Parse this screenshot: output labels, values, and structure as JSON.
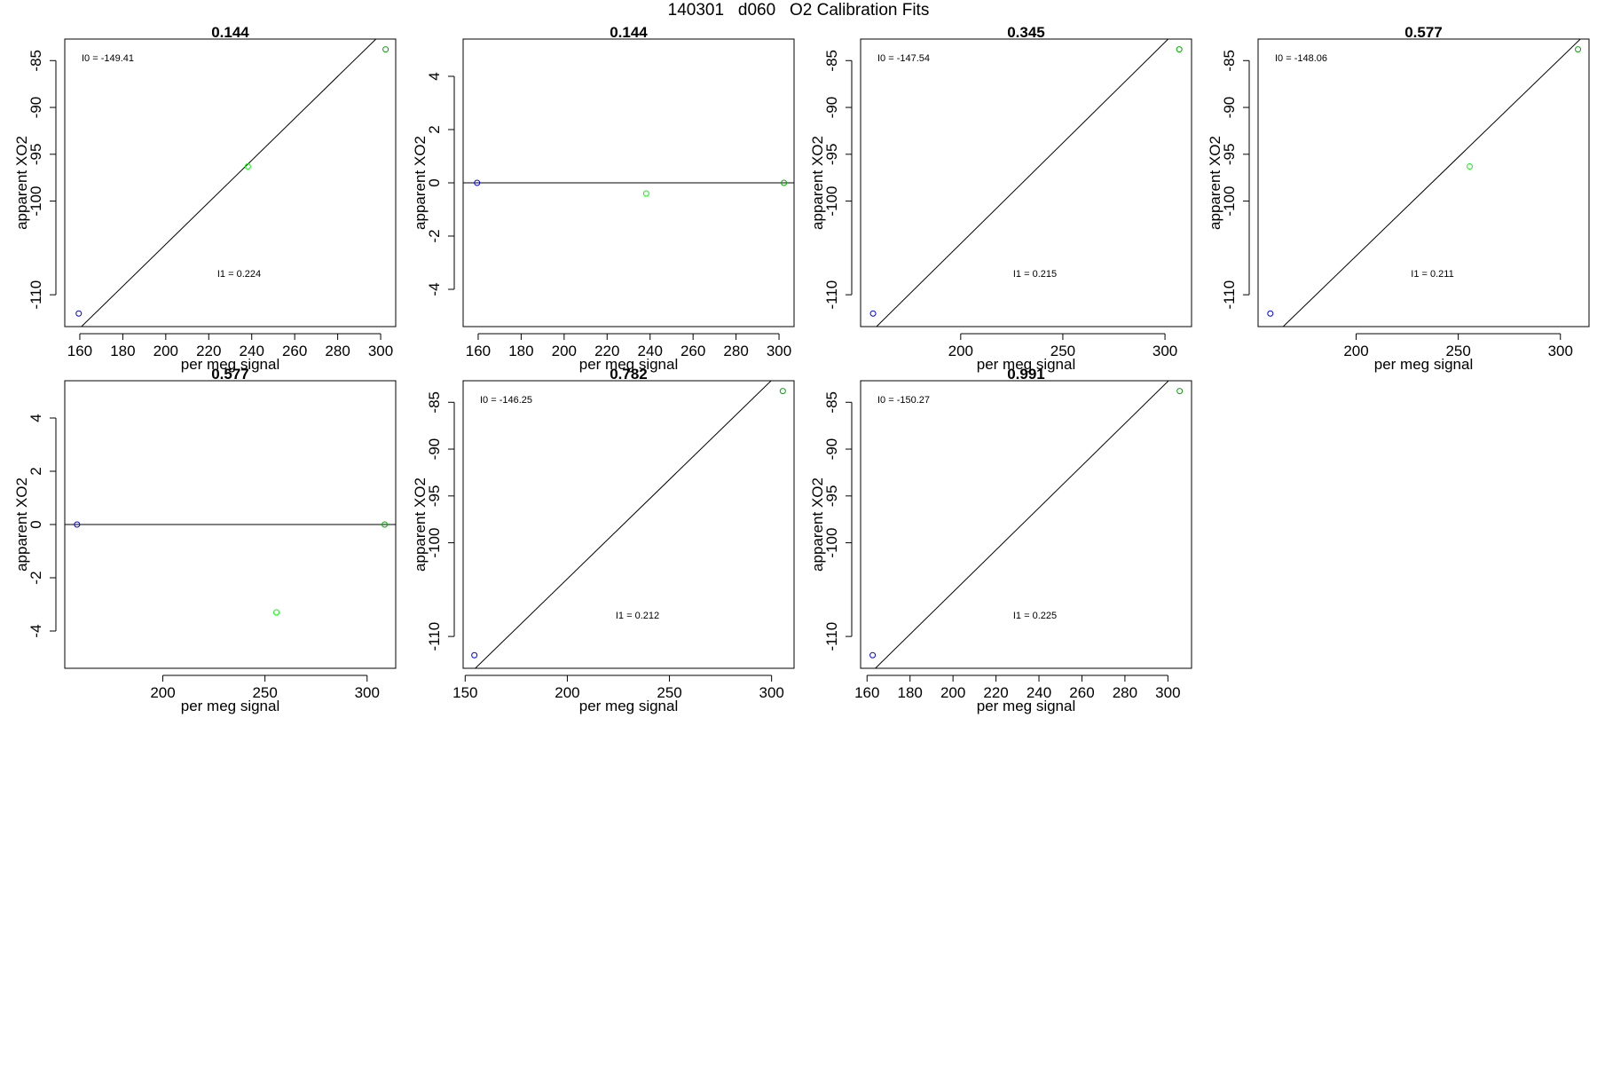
{
  "page_title": "140301   d060   O2 Calibration Fits",
  "colors": {
    "low_std": "#0000ff",
    "mid_std": "#00ff00",
    "high_std": "#00aa00",
    "fit_line": "#000000"
  },
  "chart_data": [
    {
      "type": "scatter",
      "title": "0.144",
      "xlabel": "per meg signal",
      "ylabel": "apparent XO2",
      "xlim": [
        153,
        307
      ],
      "ylim": [
        -113.4,
        -82.7
      ],
      "xticks": [
        160,
        180,
        200,
        220,
        240,
        260,
        280,
        300
      ],
      "yticks": [
        -110,
        -100,
        -95,
        -90,
        -85
      ],
      "points": [
        {
          "x": 159.5,
          "y": -112.0,
          "color": "#0000ff"
        },
        {
          "x": 238.2,
          "y": -96.3,
          "color": "#00ff00"
        },
        {
          "x": 302.3,
          "y": -83.8,
          "color": "#00aa00"
        }
      ],
      "fit_line": {
        "intercept": -149.41,
        "slope": 0.224
      },
      "annotations": {
        "intercept_label": "I0 =  -149.41",
        "slope_label": "I1 =  0.224"
      }
    },
    {
      "type": "scatter",
      "title": "0.144",
      "xlabel": "per meg signal",
      "ylabel": "apparent XO2",
      "xlim": [
        153,
        307
      ],
      "ylim": [
        -5.4,
        5.4
      ],
      "xticks": [
        160,
        180,
        200,
        220,
        240,
        260,
        280,
        300
      ],
      "yticks": [
        -4,
        -2,
        0,
        2,
        4
      ],
      "points": [
        {
          "x": 159.5,
          "y": 0,
          "color": "#0000ff"
        },
        {
          "x": 238.2,
          "y": -0.4,
          "color": "#00ff00"
        },
        {
          "x": 302.3,
          "y": 0,
          "color": "#00aa00"
        }
      ],
      "fit_line": {
        "intercept": 0,
        "slope": 0
      }
    },
    {
      "type": "scatter",
      "title": "0.345",
      "xlabel": "per meg signal",
      "ylabel": "apparent XO2",
      "xlim": [
        151,
        313
      ],
      "ylim": [
        -113.4,
        -82.7
      ],
      "xticks": [
        200,
        250,
        300
      ],
      "yticks": [
        -110,
        -100,
        -95,
        -90,
        -85
      ],
      "points": [
        {
          "x": 157.1,
          "y": -112.0,
          "color": "#0000ff"
        },
        {
          "x": 307.0,
          "y": -83.8,
          "color": "#00aa00"
        }
      ],
      "fit_line": {
        "intercept": -147.54,
        "slope": 0.215
      },
      "annotations": {
        "intercept_label": "I0 =  -147.54",
        "slope_label": "I1 =  0.215"
      }
    },
    {
      "type": "scatter",
      "title": "0.577",
      "xlabel": "per meg signal",
      "ylabel": "apparent XO2",
      "xlim": [
        152,
        314
      ],
      "ylim": [
        -113.4,
        -82.7
      ],
      "xticks": [
        200,
        250,
        300
      ],
      "yticks": [
        -110,
        -100,
        -95,
        -90,
        -85
      ],
      "points": [
        {
          "x": 158.0,
          "y": -112.0,
          "color": "#0000ff"
        },
        {
          "x": 255.6,
          "y": -96.3,
          "color": "#00ff00"
        },
        {
          "x": 308.6,
          "y": -83.8,
          "color": "#00aa00"
        }
      ],
      "fit_line": {
        "intercept": -148.06,
        "slope": 0.211
      },
      "annotations": {
        "intercept_label": "I0 =  -148.06",
        "slope_label": "I1 =  0.211"
      }
    },
    {
      "type": "scatter",
      "title": "0.577",
      "xlabel": "per meg signal",
      "ylabel": "apparent XO2",
      "xlim": [
        152,
        314
      ],
      "ylim": [
        -5.4,
        5.4
      ],
      "xticks": [
        200,
        250,
        300
      ],
      "yticks": [
        -4,
        -2,
        0,
        2,
        4
      ],
      "points": [
        {
          "x": 158.0,
          "y": 0,
          "color": "#0000ff"
        },
        {
          "x": 255.6,
          "y": -3.3,
          "color": "#00ff00"
        },
        {
          "x": 308.6,
          "y": 0,
          "color": "#00aa00"
        }
      ],
      "fit_line": {
        "intercept": 0,
        "slope": 0
      }
    },
    {
      "type": "scatter",
      "title": "0.782",
      "xlabel": "per meg signal",
      "ylabel": "apparent XO2",
      "xlim": [
        149,
        311
      ],
      "ylim": [
        -113.4,
        -82.7
      ],
      "xticks": [
        150,
        200,
        250,
        300
      ],
      "yticks": [
        -110,
        -100,
        -95,
        -90,
        -85
      ],
      "points": [
        {
          "x": 154.5,
          "y": -112.0,
          "color": "#0000ff"
        },
        {
          "x": 305.5,
          "y": -83.8,
          "color": "#00aa00"
        }
      ],
      "fit_line": {
        "intercept": -146.25,
        "slope": 0.212
      },
      "annotations": {
        "intercept_label": "I0 =  -146.25",
        "slope_label": "I1 =  0.212"
      }
    },
    {
      "type": "scatter",
      "title": "0.991",
      "xlabel": "per meg signal",
      "ylabel": "apparent XO2",
      "xlim": [
        157,
        311
      ],
      "ylim": [
        -113.4,
        -82.7
      ],
      "xticks": [
        160,
        180,
        200,
        220,
        240,
        260,
        280,
        300
      ],
      "yticks": [
        -110,
        -100,
        -95,
        -90,
        -85
      ],
      "points": [
        {
          "x": 162.6,
          "y": -112.0,
          "color": "#0000ff"
        },
        {
          "x": 305.5,
          "y": -83.8,
          "color": "#00aa00"
        }
      ],
      "fit_line": {
        "intercept": -150.27,
        "slope": 0.225
      },
      "annotations": {
        "intercept_label": "I0 =  -150.27",
        "slope_label": "I1 =  0.225"
      }
    }
  ]
}
